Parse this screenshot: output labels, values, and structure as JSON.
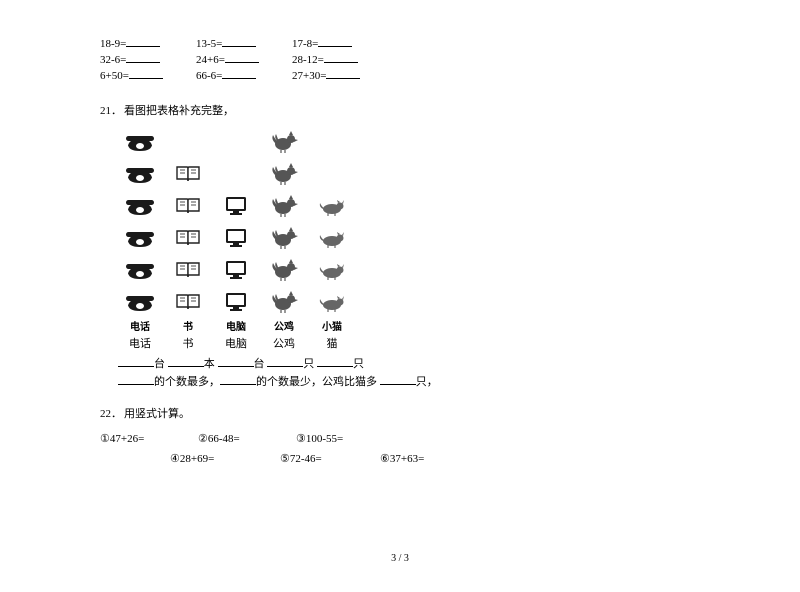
{
  "arithmetic": {
    "rows": [
      [
        "18-9=",
        "13-5=",
        "17-8="
      ],
      [
        "32-6=",
        "24+6=",
        "28-12="
      ],
      [
        "6+50=",
        "66-6=",
        "27+30="
      ]
    ]
  },
  "q21": {
    "number": "21．",
    "title": "看图把表格补充完整，",
    "columns": [
      {
        "key": "phone",
        "label_bold": "电话",
        "label": "电话",
        "count": 6,
        "icon": "phone"
      },
      {
        "key": "book",
        "label_bold": "书",
        "label": "书",
        "count": 5,
        "icon": "book"
      },
      {
        "key": "computer",
        "label_bold": "电脑",
        "label": "电脑",
        "count": 4,
        "icon": "computer"
      },
      {
        "key": "rooster",
        "label_bold": "公鸡",
        "label": "公鸡",
        "count": 6,
        "icon": "rooster"
      },
      {
        "key": "cat",
        "label_bold": "小猫",
        "label": "猫",
        "count": 4,
        "icon": "cat"
      }
    ],
    "grid_rows": 6,
    "fill_line1_parts": [
      "台",
      "本",
      "台",
      "只",
      "只"
    ],
    "fill_line2_seg1": "的个数最多，",
    "fill_line2_seg2": "的个数最少，公鸡比猫多 ",
    "fill_line2_seg3": "只，"
  },
  "q22": {
    "number": "22．",
    "title": "用竖式计算。",
    "items": [
      {
        "mark": "①",
        "expr": "47+26="
      },
      {
        "mark": "②",
        "expr": "66-48="
      },
      {
        "mark": "③",
        "expr": "100-55="
      },
      {
        "mark": "④",
        "expr": "28+69="
      },
      {
        "mark": "⑤",
        "expr": "72-46="
      },
      {
        "mark": "⑥",
        "expr": "37+63="
      }
    ]
  },
  "footer": "3 / 3",
  "icons": {
    "phone_color": "#1a1a1a",
    "book_color": "#2a2a2a",
    "computer_color": "#1a1a1a",
    "rooster_color": "#555555",
    "cat_color": "#666666",
    "background": "#ffffff"
  }
}
